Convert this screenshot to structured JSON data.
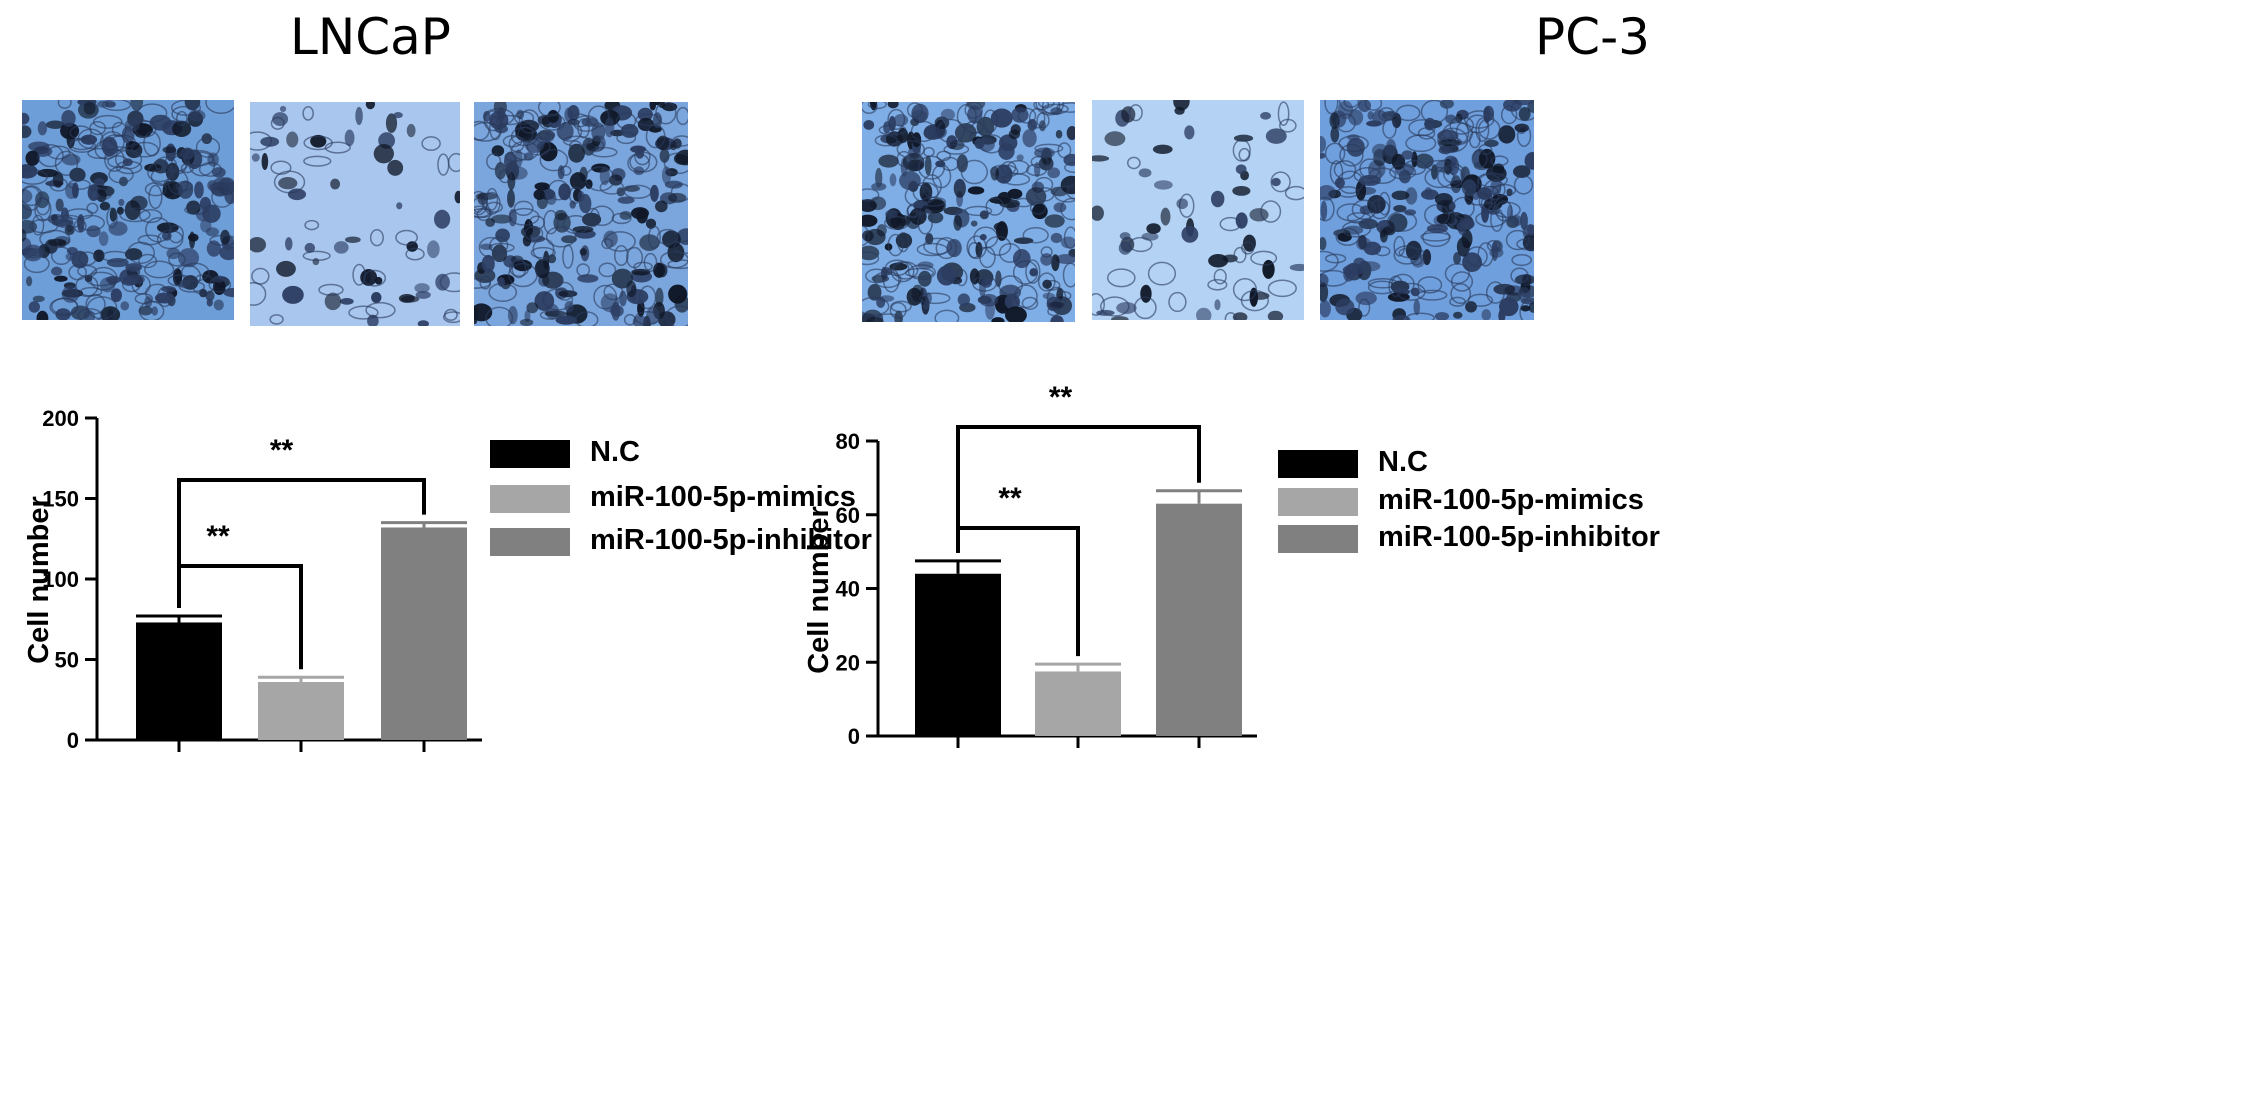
{
  "panels": [
    {
      "title": "LNCaP",
      "images": [
        {
          "density": "high",
          "tint": "#6e9ed8"
        },
        {
          "density": "low",
          "tint": "#a8c6ee"
        },
        {
          "density": "high",
          "tint": "#7aa6dd"
        }
      ]
    },
    {
      "title": "PC-3",
      "images": [
        {
          "density": "high",
          "tint": "#7faee6"
        },
        {
          "density": "low",
          "tint": "#b3d2f4"
        },
        {
          "density": "high",
          "tint": "#6f9fdc"
        }
      ]
    }
  ],
  "legend_colors": {
    "N.C": "#000000",
    "miR-100-5p-mimics": "#a6a6a6",
    "miR-100-5p-inhibitor": "#808080"
  },
  "chart_data": [
    {
      "type": "bar",
      "categories": [
        "N.C",
        "miR-100-5p-mimics",
        "miR-100-5p-inhibitor"
      ],
      "values": [
        73,
        36,
        132
      ],
      "errors": [
        4,
        3,
        3
      ],
      "ylabel": "Cell number",
      "ylim": [
        0,
        200
      ],
      "yticks": [
        0,
        50,
        100,
        150,
        200
      ],
      "legend_position": "top-right",
      "significance": [
        {
          "from": 0,
          "to": 1,
          "label": "**"
        },
        {
          "from": 0,
          "to": 2,
          "label": "**"
        }
      ]
    },
    {
      "type": "bar",
      "categories": [
        "N.C",
        "miR-100-5p-mimics",
        "miR-100-5p-inhibitor"
      ],
      "values": [
        44,
        17.5,
        63
      ],
      "errors": [
        3.5,
        2,
        3.5
      ],
      "ylabel": "Cell number",
      "ylim": [
        0,
        80
      ],
      "yticks": [
        0,
        20,
        40,
        60,
        80
      ],
      "legend_position": "top-right",
      "significance": [
        {
          "from": 0,
          "to": 1,
          "label": "**"
        },
        {
          "from": 0,
          "to": 2,
          "label": "**"
        }
      ]
    }
  ]
}
